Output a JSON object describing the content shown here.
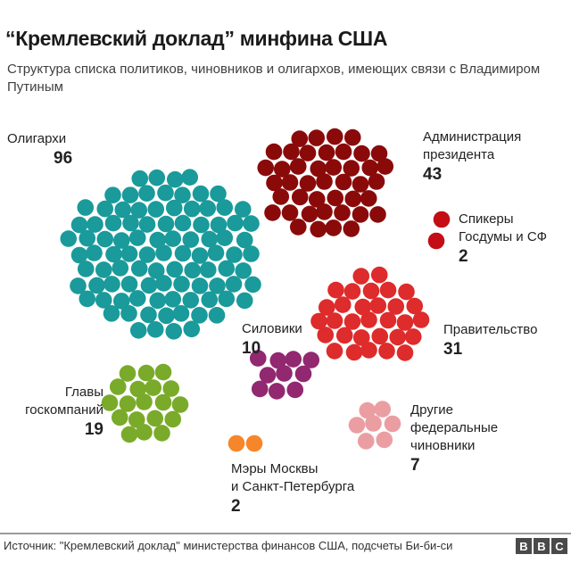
{
  "header": {
    "title": "“Кремлевский доклад” минфина США",
    "subtitle": "Структура списка политиков, чиновников и олигархов, имеющих связи с Владимиром Путиным"
  },
  "groups": [
    {
      "id": "oligarchs",
      "label": "Олигархи",
      "count": "96",
      "color": "#1a9a9a"
    },
    {
      "id": "administration",
      "label": "Администрация президента",
      "count": "43",
      "color": "#8a0a0a"
    },
    {
      "id": "speakers",
      "label": "Спикеры Госдумы и СФ",
      "count": "2",
      "color": "#c40d14"
    },
    {
      "id": "government",
      "label": "Правительство",
      "count": "31",
      "color": "#de2b2b"
    },
    {
      "id": "siloviki",
      "label": "Силовики",
      "count": "10",
      "color": "#912870"
    },
    {
      "id": "state_company_heads",
      "label": "Главы госкомпаний",
      "count": "19",
      "color": "#7aaa2a"
    },
    {
      "id": "mayors",
      "label": "Мэры Москвы и Санкт-Петербурга",
      "count": "2",
      "color": "#f5862a"
    },
    {
      "id": "other_federal",
      "label": "Другие федеральные чиновники",
      "count": "7",
      "color": "#eb9ea2"
    }
  ],
  "labels": {
    "oligarchs": {
      "line1": "Олигархи",
      "count": "96"
    },
    "administration": {
      "line1": "Администрация",
      "line2": "президента",
      "count": "43"
    },
    "speakers": {
      "line1": "Спикеры",
      "line2": "Госдумы и СФ",
      "count": "2"
    },
    "government": {
      "line1": "Правительство",
      "count": "31"
    },
    "siloviki": {
      "line1": "Силовики",
      "count": "10"
    },
    "state_company_heads": {
      "line1": "Главы",
      "line2": "госкомпаний",
      "count": "19"
    },
    "mayors": {
      "line1": "Мэры Москвы",
      "line2": "и Санкт-Петербурга",
      "count": "2"
    },
    "other_federal": {
      "line1": "Другие",
      "line2": "федеральные",
      "line3": "чиновники",
      "count": "7"
    }
  },
  "footer": {
    "source": "Источник: \"Кремлевский доклад\" министерства финансов США, подсчеты Би-би-си",
    "logo": [
      "B",
      "B",
      "C"
    ]
  },
  "chart_data": {
    "type": "bubble-cluster",
    "title": "“Кремлевский доклад” минфина США",
    "subtitle": "Структура списка политиков, чиновников и олигархов, имеющих связи с Владимиром Путиным",
    "categories": [
      "Олигархи",
      "Администрация президента",
      "Спикеры Госдумы и СФ",
      "Правительство",
      "Силовики",
      "Главы госкомпаний",
      "Мэры Москвы и Санкт-Петербурга",
      "Другие федеральные чиновники"
    ],
    "values": [
      96,
      43,
      2,
      31,
      10,
      19,
      2,
      7
    ],
    "colors": [
      "#1a9a9a",
      "#8a0a0a",
      "#c40d14",
      "#de2b2b",
      "#912870",
      "#7aaa2a",
      "#f5862a",
      "#eb9ea2"
    ],
    "total": 210,
    "source": "Источник: \"Кремлевский доклад\" министерства финансов США, подсчеты Би-би-си"
  }
}
